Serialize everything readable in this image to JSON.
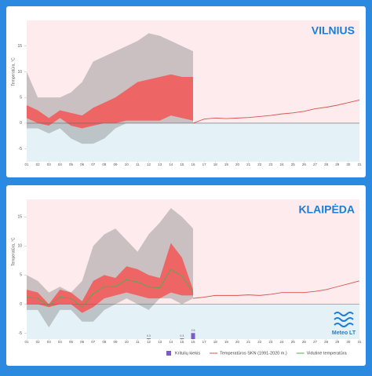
{
  "chart_data": [
    {
      "type": "line",
      "title": "VILNIUS",
      "ylabel": "Temperatūra, °C",
      "xlim": [
        1,
        31
      ],
      "xticks": [
        {
          "value": 1,
          "label": "01"
        },
        {
          "value": 2,
          "label": "02"
        },
        {
          "value": 3,
          "label": "03"
        },
        {
          "value": 4,
          "label": "04"
        },
        {
          "value": 5,
          "label": "05"
        },
        {
          "value": 6,
          "label": "06"
        },
        {
          "value": 7,
          "label": "07"
        },
        {
          "value": 8,
          "label": "08"
        },
        {
          "value": 9,
          "label": "09"
        },
        10,
        11,
        12,
        13,
        14,
        15,
        16,
        17,
        18,
        19,
        20,
        21,
        22,
        23,
        24,
        25,
        26,
        27,
        28,
        29,
        30,
        31
      ],
      "ylim": [
        -7.5,
        20
      ],
      "yticks": [
        -5,
        0,
        5,
        10,
        15
      ],
      "background": {
        "above": "#fdebed",
        "below": "#e4f2f8"
      },
      "bands": [
        {
          "color": "rgba(140,140,140,0.45)",
          "x": [
            1,
            2,
            3,
            4,
            5,
            6,
            7,
            8,
            9,
            10,
            11,
            12,
            13,
            14,
            15,
            16
          ],
          "upper": [
            10,
            5,
            5,
            5,
            6,
            8,
            12,
            13,
            14,
            15,
            16,
            17.5,
            17,
            16,
            15,
            14
          ],
          "lower": [
            -1,
            -1,
            -2,
            -1,
            -3,
            -4,
            -4,
            -3,
            -1,
            0,
            0,
            0,
            0,
            0,
            0,
            0
          ]
        },
        {
          "color": "rgba(245,85,85,0.85)",
          "x": [
            1,
            2,
            3,
            4,
            5,
            6,
            7,
            8,
            9,
            10,
            11,
            12,
            13,
            14,
            15,
            16
          ],
          "upper": [
            3.5,
            2.5,
            1,
            2.5,
            2,
            1.5,
            3,
            4,
            5,
            6.5,
            8,
            8.5,
            9,
            9.5,
            9,
            9
          ],
          "lower": [
            1,
            0,
            -0.5,
            1,
            -0.5,
            -1,
            -0.5,
            0,
            0,
            0.5,
            0.5,
            0.5,
            0.5,
            1.5,
            1,
            0.5
          ]
        }
      ],
      "series": [
        {
          "type": "line",
          "color": "#d9534f",
          "x": [
            16,
            17,
            18,
            19,
            20,
            21,
            22,
            23,
            24,
            25,
            26,
            27,
            28,
            29,
            30,
            31
          ],
          "values": [
            0,
            0.8,
            1,
            0.9,
            1,
            1.1,
            1.3,
            1.5,
            1.8,
            2,
            2.3,
            2.8,
            3.1,
            3.5,
            4,
            4.5
          ]
        }
      ],
      "legend": false
    },
    {
      "type": "line",
      "title": "KLAIPĖDA",
      "ylabel": "Temperatūra, °C",
      "xlim": [
        1,
        31
      ],
      "xticks": [
        {
          "value": 1,
          "label": "01"
        },
        {
          "value": 2,
          "label": "02"
        },
        {
          "value": 3,
          "label": "03"
        },
        {
          "value": 4,
          "label": "04"
        },
        {
          "value": 5,
          "label": "05"
        },
        {
          "value": 6,
          "label": "06"
        },
        {
          "value": 7,
          "label": "07"
        },
        {
          "value": 8,
          "label": "08"
        },
        {
          "value": 9,
          "label": "09"
        },
        10,
        11,
        12,
        13,
        14,
        15,
        16,
        17,
        18,
        19,
        20,
        21,
        22,
        23,
        24,
        25,
        26,
        27,
        28,
        29,
        30,
        31
      ],
      "ylim": [
        -6,
        18
      ],
      "yticks": [
        -5,
        0,
        5,
        10,
        15
      ],
      "y2lim": [
        0,
        60
      ],
      "background": {
        "above": "#fdebed",
        "below": "#e4f2f8"
      },
      "bands": [
        {
          "color": "rgba(140,140,140,0.45)",
          "x": [
            1,
            2,
            3,
            4,
            5,
            6,
            7,
            8,
            9,
            10,
            11,
            12,
            13,
            14,
            15,
            16
          ],
          "upper": [
            5,
            4,
            2,
            3,
            2,
            4,
            10,
            12,
            13,
            11,
            9,
            12,
            14,
            16.5,
            15,
            13
          ],
          "lower": [
            -1,
            -1,
            -4,
            -1,
            -1,
            -3,
            -3,
            -1,
            0,
            1,
            0,
            -1,
            1,
            1,
            0,
            1
          ]
        },
        {
          "color": "rgba(245,85,85,0.85)",
          "x": [
            1,
            2,
            3,
            4,
            5,
            6,
            7,
            8,
            9,
            10,
            11,
            12,
            13,
            14,
            15,
            16
          ],
          "upper": [
            2.5,
            2,
            0,
            2.5,
            2,
            0.5,
            4,
            5,
            4.5,
            6.5,
            6,
            5,
            4.5,
            10.5,
            8,
            2.5
          ],
          "lower": [
            0,
            0,
            -0.5,
            0,
            0,
            -1.5,
            -0.5,
            1,
            1.5,
            2,
            1.5,
            1,
            1,
            2,
            1.5,
            1.5
          ]
        }
      ],
      "series": [
        {
          "type": "bar",
          "axis": "y2",
          "name": "Kritulių kiekis",
          "color": "#7b5cc4",
          "x": [
            12,
            15,
            16
          ],
          "values": [
            0.3,
            0.3,
            2.6
          ]
        },
        {
          "type": "line",
          "name": "Temperatūros SKN (1991-2020 m.)",
          "color": "#d9534f",
          "x": [
            16,
            17,
            18,
            19,
            20,
            21,
            22,
            23,
            24,
            25,
            26,
            27,
            28,
            29,
            30,
            31
          ],
          "values": [
            1,
            1.2,
            1.5,
            1.5,
            1.5,
            1.6,
            1.5,
            1.7,
            2,
            2,
            2,
            2.2,
            2.5,
            3,
            3.5,
            4
          ]
        },
        {
          "type": "line",
          "name": "Vidutinė temperatūra",
          "color": "#4caf50",
          "x": [
            1,
            2,
            3,
            4,
            5,
            6,
            7,
            8,
            9,
            10,
            11,
            12,
            13,
            14,
            15,
            16
          ],
          "values": [
            1.2,
            1,
            -0.3,
            1.2,
            1,
            -0.5,
            1.8,
            3,
            3,
            4.2,
            3.8,
            3,
            2.8,
            6,
            4.8,
            2
          ]
        }
      ],
      "legend": true
    }
  ],
  "logo": "Meteo LT"
}
